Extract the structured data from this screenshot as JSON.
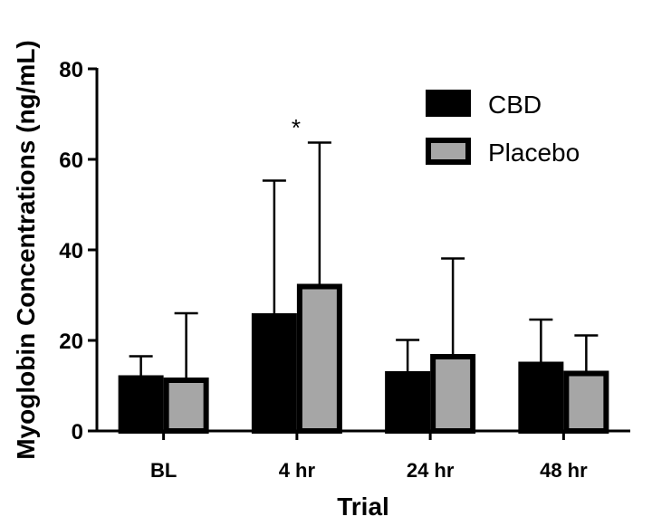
{
  "chart_data": {
    "type": "bar",
    "title": "",
    "xlabel": "Trial",
    "ylabel": "Myoglobin Concentrations (ng/mL)",
    "ylim": [
      0,
      80
    ],
    "yticks": [
      0,
      20,
      40,
      60,
      80
    ],
    "categories": [
      "BL",
      "4 hr",
      "24 hr",
      "48 hr"
    ],
    "series": [
      {
        "name": "CBD",
        "color": "#000000",
        "values": [
          12.3,
          26.0,
          13.2,
          15.3
        ],
        "error_upper": [
          16.5,
          55.3,
          20.1,
          24.6
        ]
      },
      {
        "name": "Placebo",
        "color": "#a6a6a6",
        "values": [
          11.8,
          32.5,
          17.0,
          13.3
        ],
        "error_upper": [
          26.0,
          63.7,
          38.1,
          21.1
        ]
      }
    ],
    "legend": [
      "CBD",
      "Placebo"
    ],
    "legend_position": "top-right",
    "annotations": [
      {
        "text": "*",
        "category": "4 hr"
      }
    ]
  }
}
